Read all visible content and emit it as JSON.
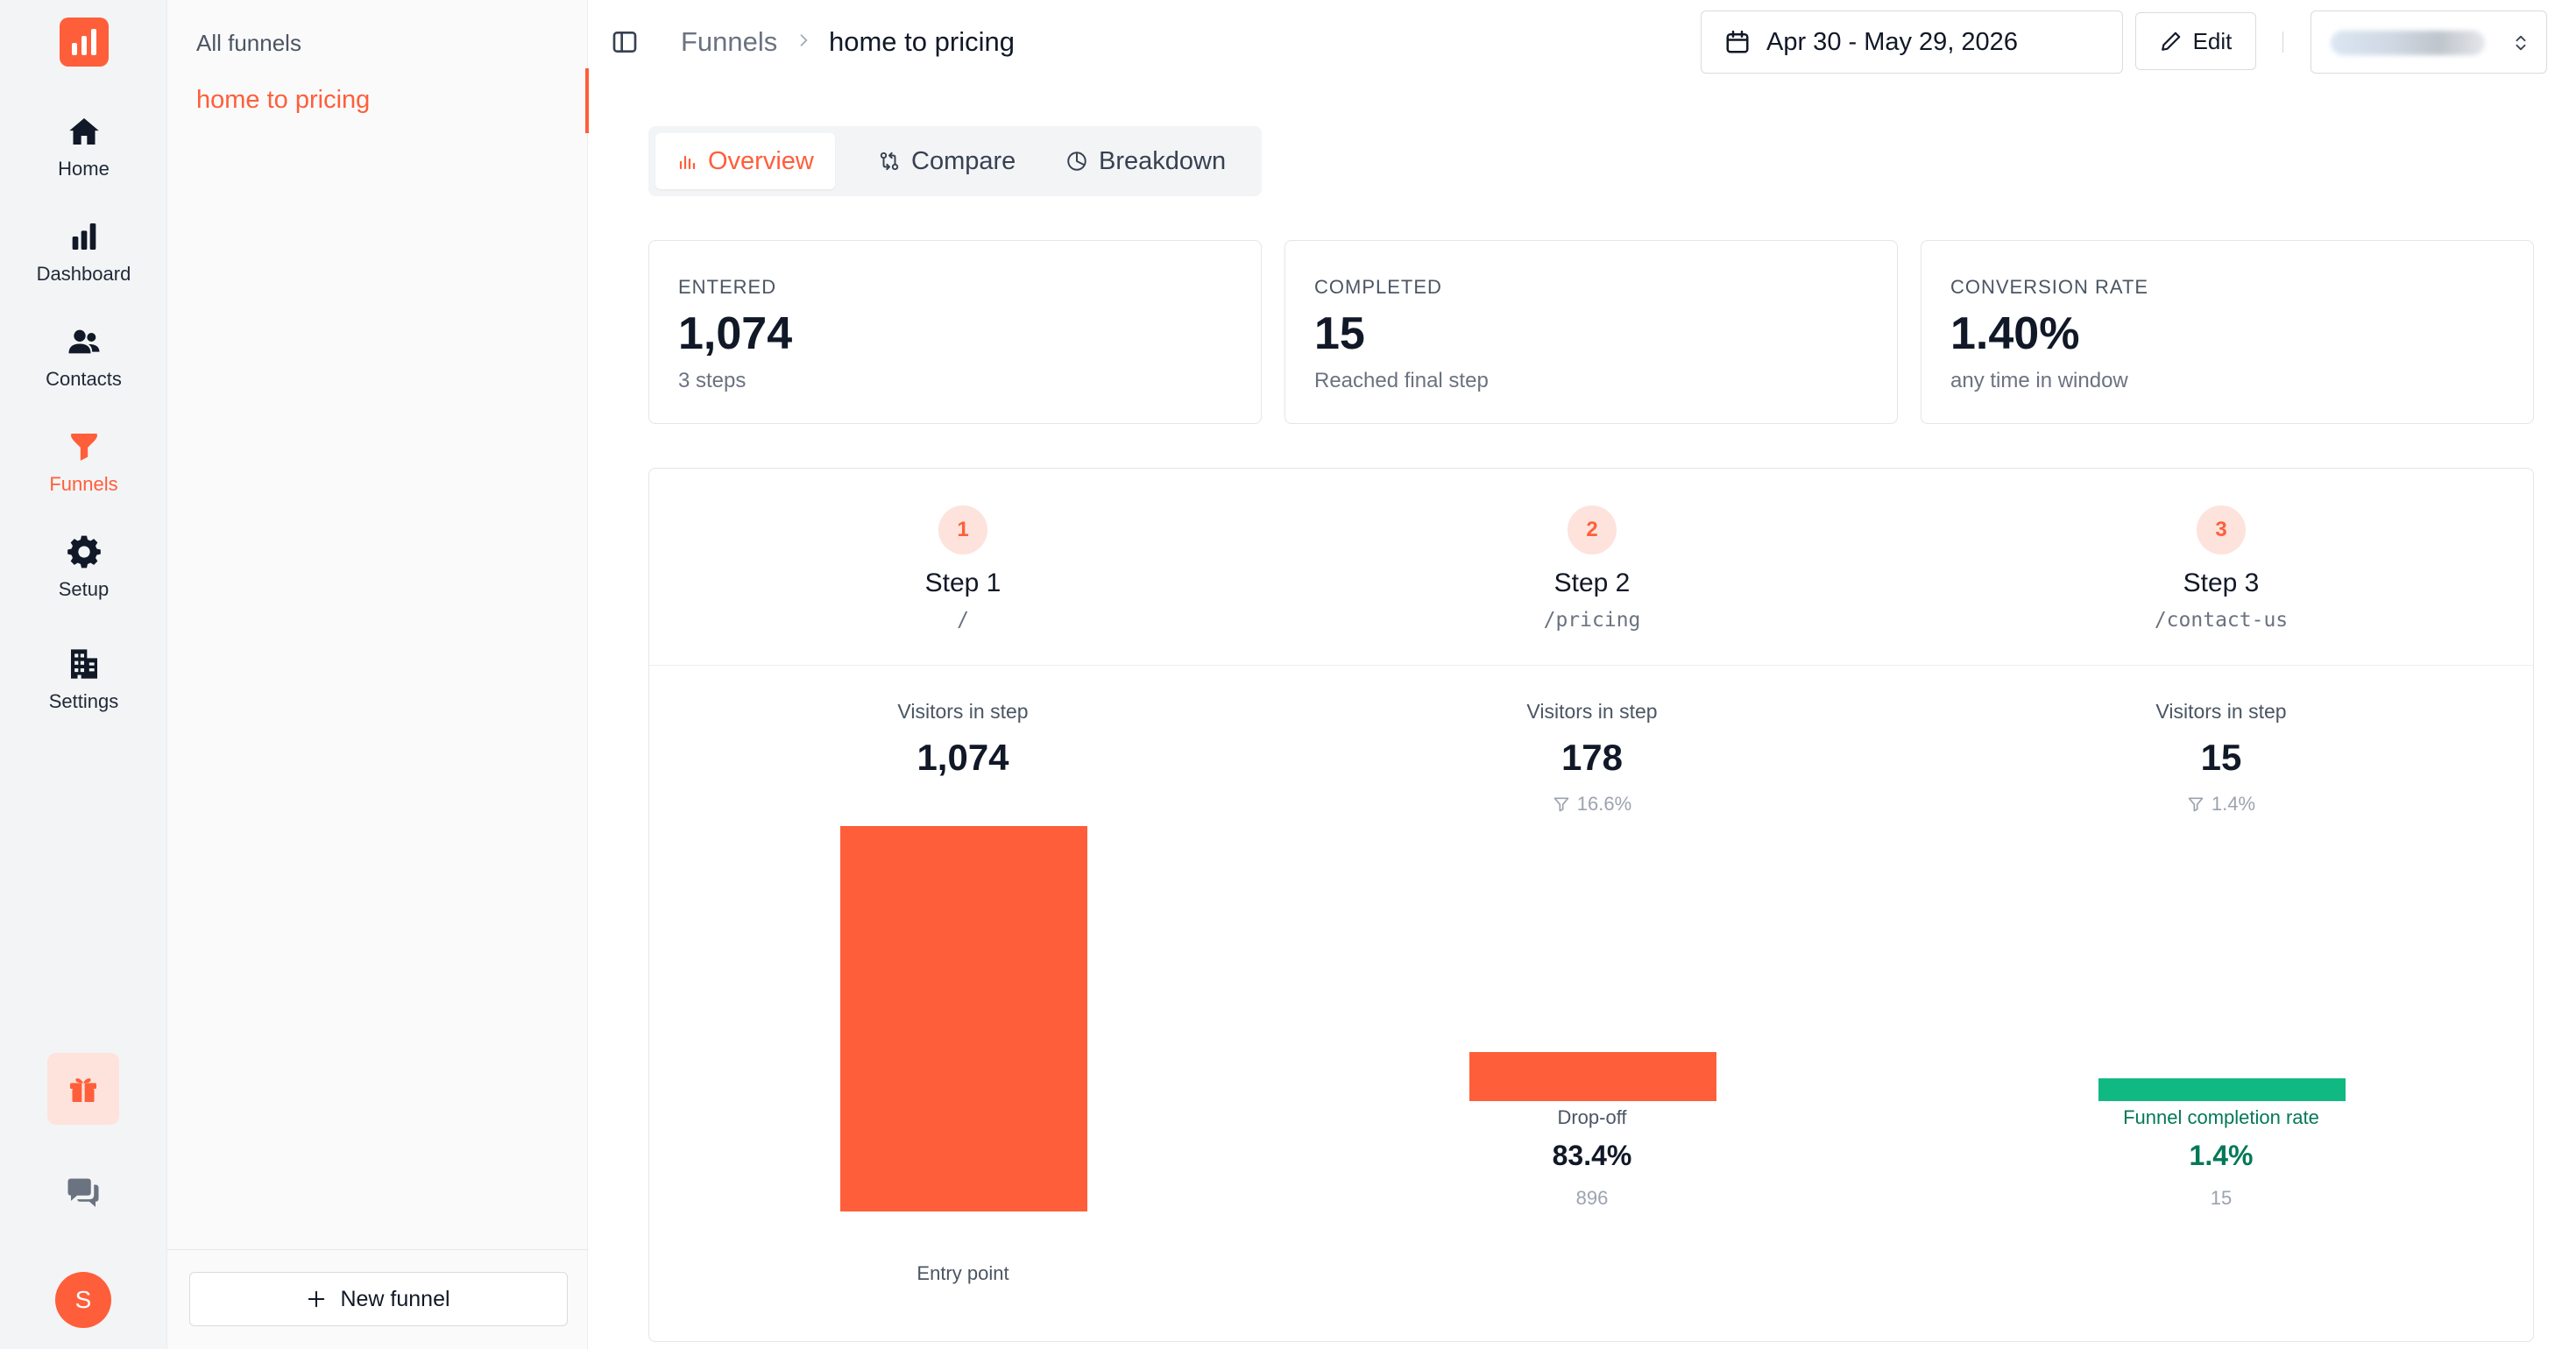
{
  "nav": {
    "items": [
      {
        "label": "Home",
        "icon": "home-icon"
      },
      {
        "label": "Dashboard",
        "icon": "bar-chart-icon"
      },
      {
        "label": "Contacts",
        "icon": "users-icon"
      },
      {
        "label": "Funnels",
        "icon": "funnel-icon"
      },
      {
        "label": "Setup",
        "icon": "gear-icon"
      },
      {
        "label": "Settings",
        "icon": "building-icon"
      }
    ],
    "active": "Funnels",
    "avatar_initial": "S"
  },
  "panel": {
    "title": "All funnels",
    "items": [
      "home to pricing"
    ],
    "new_funnel_label": "New funnel"
  },
  "header": {
    "breadcrumb_root": "Funnels",
    "breadcrumb_current": "home to pricing",
    "date_range": "Apr 30 - May 29, 2026",
    "edit_label": "Edit"
  },
  "tabs": [
    {
      "label": "Overview",
      "active": true
    },
    {
      "label": "Compare",
      "active": false
    },
    {
      "label": "Breakdown",
      "active": false
    }
  ],
  "stats": [
    {
      "key": "ENTERED",
      "value": "1,074",
      "sub": "3 steps"
    },
    {
      "key": "COMPLETED",
      "value": "15",
      "sub": "Reached final step"
    },
    {
      "key": "CONVERSION RATE",
      "value": "1.40%",
      "sub": "any time in window"
    }
  ],
  "steps": [
    {
      "num": "1",
      "title": "Step 1",
      "path": "/",
      "visitors_label": "Visitors in step",
      "visitors": "1,074",
      "visitors_value": 1074,
      "pct": "",
      "foot_label": "Entry point",
      "foot_value": "",
      "foot_count": ""
    },
    {
      "num": "2",
      "title": "Step 2",
      "path": "/pricing",
      "visitors_label": "Visitors in step",
      "visitors": "178",
      "visitors_value": 178,
      "pct": "16.6%",
      "foot_label": "Drop-off",
      "foot_value": "83.4%",
      "foot_count": "896"
    },
    {
      "num": "3",
      "title": "Step 3",
      "path": "/contact-us",
      "visitors_label": "Visitors in step",
      "visitors": "15",
      "visitors_value": 15,
      "pct": "1.4%",
      "foot_label": "Funnel completion rate",
      "foot_value": "1.4%",
      "foot_count": "15"
    }
  ],
  "colors": {
    "accent": "#ff5e3a",
    "complete": "#10b981",
    "complete_text": "#047857"
  }
}
